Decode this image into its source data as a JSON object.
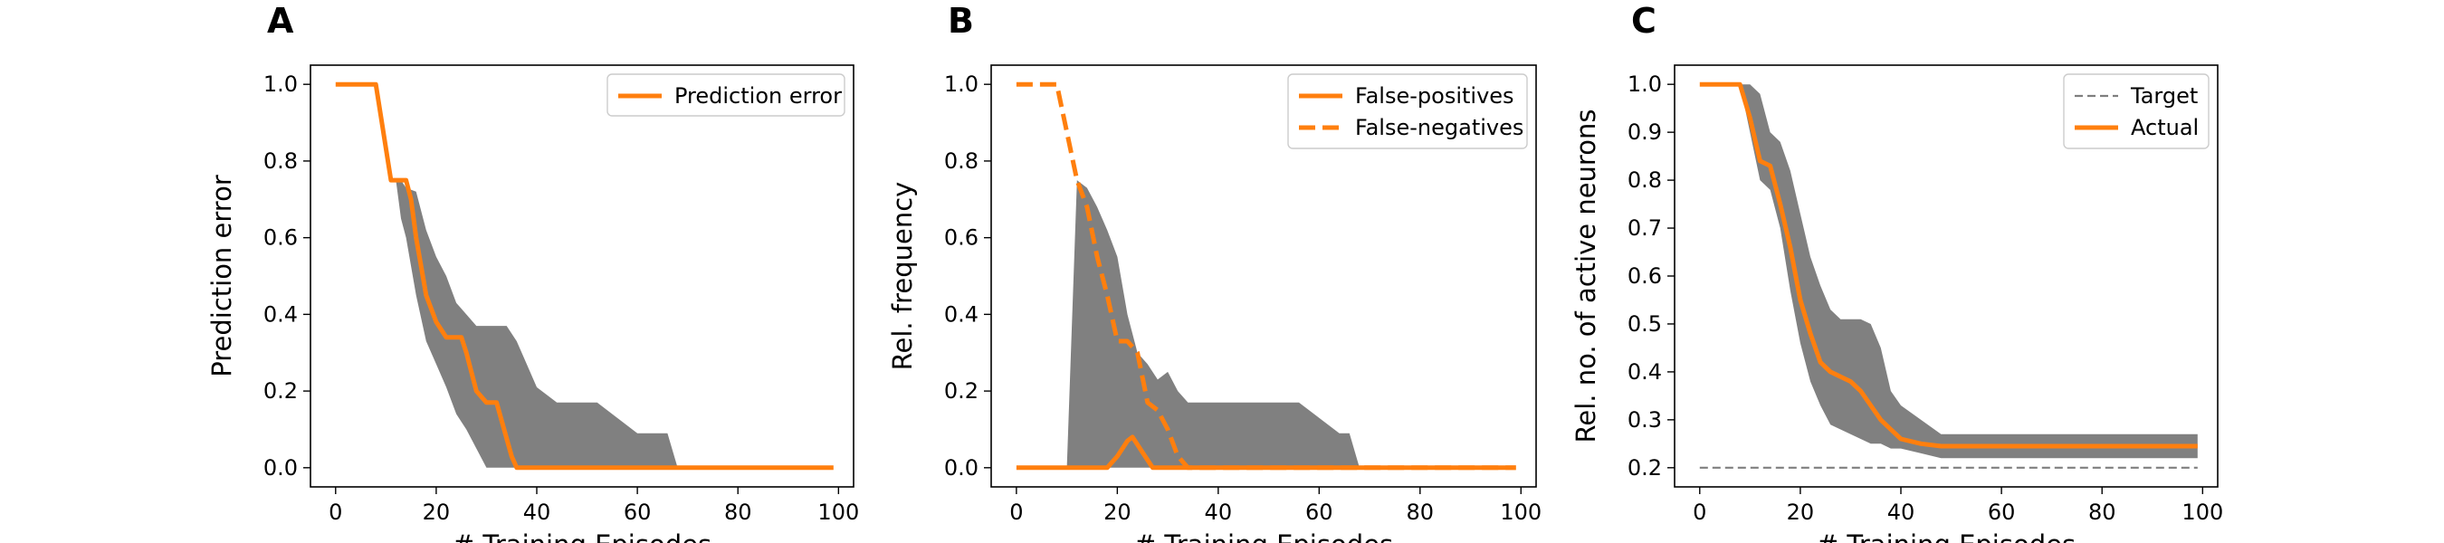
{
  "colors": {
    "orange": "#ff7f0e",
    "band": "#808080",
    "target": "#7f7f7f",
    "axis": "#000000"
  },
  "chart_data": [
    {
      "panel_letter": "A",
      "type": "line",
      "xlabel": "# Training Episodes",
      "ylabel": "Prediction error",
      "xlim": [
        -5,
        103
      ],
      "ylim": [
        -0.05,
        1.05
      ],
      "xticks": [
        0,
        20,
        40,
        60,
        80,
        100
      ],
      "yticks": [
        0.0,
        0.2,
        0.4,
        0.6,
        0.8,
        1.0
      ],
      "ytick_labels": [
        "0.0",
        "0.2",
        "0.4",
        "0.6",
        "0.8",
        "1.0"
      ],
      "grid": false,
      "legend_position": "top-right",
      "band": {
        "x": [
          0,
          8,
          12,
          13,
          14,
          16,
          18,
          20,
          22,
          24,
          26,
          28,
          30,
          32,
          34,
          36,
          38,
          40,
          44,
          48,
          52,
          56,
          60,
          64,
          66,
          68,
          70,
          80,
          90,
          99
        ],
        "lower": [
          1.0,
          1.0,
          0.75,
          0.65,
          0.6,
          0.45,
          0.33,
          0.27,
          0.21,
          0.14,
          0.1,
          0.05,
          0.0,
          0.0,
          0.0,
          0.0,
          0.0,
          0.0,
          0.0,
          0.0,
          0.0,
          0.0,
          0.0,
          0.0,
          0.0,
          0.0,
          0.0,
          0.0,
          0.0,
          0.0
        ],
        "upper": [
          1.0,
          1.0,
          0.75,
          0.75,
          0.73,
          0.72,
          0.62,
          0.55,
          0.5,
          0.43,
          0.4,
          0.37,
          0.37,
          0.37,
          0.37,
          0.33,
          0.27,
          0.21,
          0.17,
          0.17,
          0.17,
          0.13,
          0.09,
          0.09,
          0.09,
          0.0,
          0.0,
          0.0,
          0.0,
          0.0
        ]
      },
      "series": [
        {
          "name": "Prediction error",
          "style": "solid",
          "x": [
            0,
            8,
            11,
            12,
            14,
            15,
            16,
            18,
            20,
            22,
            24,
            25,
            26,
            28,
            30,
            32,
            35,
            36,
            40,
            60,
            80,
            99
          ],
          "y": [
            1.0,
            1.0,
            0.75,
            0.75,
            0.75,
            0.7,
            0.6,
            0.45,
            0.38,
            0.34,
            0.34,
            0.34,
            0.3,
            0.2,
            0.17,
            0.17,
            0.03,
            0.0,
            0.0,
            0.0,
            0.0,
            0.0
          ]
        }
      ]
    },
    {
      "panel_letter": "B",
      "type": "line",
      "xlabel": "# Training Episodes",
      "ylabel": "Rel. frequency",
      "xlim": [
        -5,
        103
      ],
      "ylim": [
        -0.05,
        1.05
      ],
      "xticks": [
        0,
        20,
        40,
        60,
        80,
        100
      ],
      "yticks": [
        0.0,
        0.2,
        0.4,
        0.6,
        0.8,
        1.0
      ],
      "ytick_labels": [
        "0.0",
        "0.2",
        "0.4",
        "0.6",
        "0.8",
        "1.0"
      ],
      "grid": false,
      "legend_position": "top-right",
      "band": {
        "x": [
          0,
          10,
          12,
          14,
          16,
          18,
          20,
          22,
          24,
          26,
          28,
          30,
          32,
          34,
          36,
          38,
          40,
          44,
          48,
          52,
          56,
          60,
          64,
          66,
          68,
          70,
          80,
          90,
          99
        ],
        "lower": [
          0.0,
          0.0,
          0.0,
          0.0,
          0.0,
          0.0,
          0.0,
          0.0,
          0.0,
          0.0,
          0.0,
          0.0,
          0.0,
          0.0,
          0.0,
          0.0,
          0.0,
          0.0,
          0.0,
          0.0,
          0.0,
          0.0,
          0.0,
          0.0,
          0.0,
          0.0,
          0.0,
          0.0,
          0.0
        ],
        "upper": [
          0.0,
          0.0,
          0.75,
          0.73,
          0.68,
          0.62,
          0.55,
          0.4,
          0.3,
          0.27,
          0.23,
          0.25,
          0.2,
          0.17,
          0.17,
          0.17,
          0.17,
          0.17,
          0.17,
          0.17,
          0.17,
          0.13,
          0.09,
          0.09,
          0.0,
          0.0,
          0.0,
          0.0,
          0.0
        ]
      },
      "series": [
        {
          "name": "False-positives",
          "style": "solid",
          "x": [
            0,
            18,
            20,
            22,
            23,
            25,
            27,
            30,
            40,
            60,
            80,
            99
          ],
          "y": [
            0.0,
            0.0,
            0.03,
            0.07,
            0.08,
            0.04,
            0.0,
            0.0,
            0.0,
            0.0,
            0.0,
            0.0
          ],
          "legend_dash": "solid"
        },
        {
          "name": "False-negatives",
          "style": "dashed",
          "x": [
            0,
            8,
            12,
            14,
            16,
            18,
            20,
            22,
            24,
            26,
            28,
            30,
            32,
            34,
            40,
            60,
            80,
            99
          ],
          "y": [
            1.0,
            1.0,
            0.75,
            0.68,
            0.55,
            0.45,
            0.33,
            0.33,
            0.3,
            0.17,
            0.15,
            0.1,
            0.03,
            0.0,
            0.0,
            0.0,
            0.0,
            0.0
          ],
          "legend_dash": "dashed"
        }
      ]
    },
    {
      "panel_letter": "C",
      "type": "line",
      "xlabel": "# Training Episodes",
      "ylabel": "Rel. no. of active neurons",
      "xlim": [
        -5,
        103
      ],
      "ylim": [
        0.16,
        1.04
      ],
      "xticks": [
        0,
        20,
        40,
        60,
        80,
        100
      ],
      "yticks": [
        0.2,
        0.3,
        0.4,
        0.5,
        0.6,
        0.7,
        0.8,
        0.9,
        1.0
      ],
      "ytick_labels": [
        "0.2",
        "0.3",
        "0.4",
        "0.5",
        "0.6",
        "0.7",
        "0.8",
        "0.9",
        "1.0"
      ],
      "grid": false,
      "legend_position": "top-right",
      "band": {
        "x": [
          0,
          8,
          10,
          12,
          14,
          16,
          18,
          20,
          22,
          24,
          26,
          28,
          30,
          32,
          34,
          36,
          38,
          40,
          44,
          48,
          60,
          80,
          99
        ],
        "lower": [
          1.0,
          1.0,
          0.9,
          0.8,
          0.78,
          0.7,
          0.57,
          0.46,
          0.38,
          0.33,
          0.29,
          0.28,
          0.27,
          0.26,
          0.25,
          0.25,
          0.24,
          0.24,
          0.23,
          0.22,
          0.22,
          0.22,
          0.22
        ],
        "upper": [
          1.0,
          1.0,
          1.0,
          0.98,
          0.9,
          0.88,
          0.82,
          0.73,
          0.64,
          0.58,
          0.53,
          0.51,
          0.51,
          0.51,
          0.5,
          0.45,
          0.36,
          0.33,
          0.3,
          0.27,
          0.27,
          0.27,
          0.27
        ]
      },
      "series": [
        {
          "name": "Target",
          "style": "dashed-thin",
          "x": [
            0,
            99
          ],
          "y": [
            0.2,
            0.2
          ],
          "legend_dash": "dashed-thin"
        },
        {
          "name": "Actual",
          "style": "solid",
          "x": [
            0,
            8,
            10,
            12,
            14,
            16,
            18,
            20,
            22,
            24,
            26,
            28,
            30,
            32,
            34,
            36,
            38,
            40,
            44,
            48,
            60,
            80,
            99
          ],
          "y": [
            1.0,
            1.0,
            0.93,
            0.84,
            0.83,
            0.75,
            0.66,
            0.55,
            0.48,
            0.42,
            0.4,
            0.39,
            0.38,
            0.36,
            0.33,
            0.3,
            0.28,
            0.26,
            0.25,
            0.245,
            0.245,
            0.245,
            0.245
          ],
          "legend_dash": "solid"
        }
      ]
    }
  ]
}
